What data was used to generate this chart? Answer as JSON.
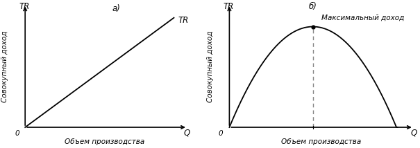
{
  "fig_width": 6.05,
  "fig_height": 2.14,
  "dpi": 100,
  "background_color": "#ffffff",
  "panel_a_label": "а)",
  "panel_b_label": "б)",
  "tr_label": "TR",
  "y_axis_label": "Совокупный доход",
  "x_axis_label": "Объем производства",
  "q_label": "Q",
  "tr_axis_label": "TR",
  "zero_label": "0",
  "max_income_label": "Максимальный доход",
  "line_color": "#000000",
  "dashed_color": "#888888",
  "font_size": 8.5,
  "font_size_small": 7.5,
  "font_style": "italic"
}
